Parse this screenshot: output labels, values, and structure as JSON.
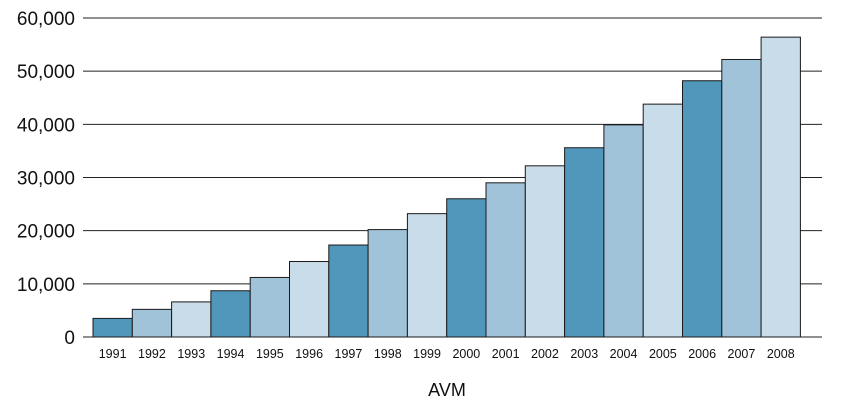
{
  "chart_data": {
    "type": "bar",
    "title": "",
    "xlabel": "AVM",
    "ylabel": "",
    "ylim": [
      0,
      60000
    ],
    "yticks": [
      0,
      10000,
      20000,
      30000,
      40000,
      50000,
      60000
    ],
    "ytick_labels": [
      "0",
      "10,000",
      "20,000",
      "30,000",
      "40,000",
      "50,000",
      "60,000"
    ],
    "grid": "horizontal",
    "categories": [
      "1991",
      "1992",
      "1993",
      "1994",
      "1995",
      "1996",
      "1997",
      "1998",
      "1999",
      "2000",
      "2001",
      "2002",
      "2003",
      "2004",
      "2005",
      "2006",
      "2007",
      "2008"
    ],
    "values": [
      3500,
      5200,
      6600,
      8700,
      11200,
      14200,
      17300,
      20200,
      23200,
      26000,
      29000,
      32200,
      35600,
      39900,
      43800,
      48200,
      52200,
      56400
    ],
    "colors": [
      "#5197bb",
      "#a0c3da",
      "#c8dce9"
    ]
  }
}
